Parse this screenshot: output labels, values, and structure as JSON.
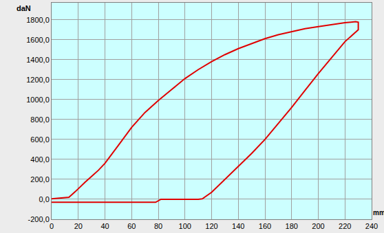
{
  "chart_data": {
    "type": "line",
    "x_label": "mm",
    "y_label": "daN",
    "x": [
      0,
      13,
      18,
      25,
      35,
      40,
      50,
      60,
      70,
      80,
      90,
      100,
      110,
      120,
      130,
      140,
      150,
      160,
      170,
      180,
      190,
      200,
      210,
      220,
      228,
      230,
      230,
      220,
      210,
      200,
      190,
      180,
      170,
      160,
      150,
      140,
      130,
      120,
      113,
      110,
      100,
      82,
      78,
      0
    ],
    "values": [
      5,
      20,
      80,
      170,
      290,
      360,
      540,
      720,
      870,
      990,
      1100,
      1210,
      1300,
      1380,
      1450,
      1510,
      1560,
      1610,
      1650,
      1680,
      1710,
      1730,
      1750,
      1770,
      1780,
      1775,
      1700,
      1580,
      1420,
      1260,
      1090,
      920,
      760,
      600,
      460,
      330,
      200,
      70,
      5,
      0,
      0,
      0,
      -30,
      -30
    ],
    "color": "#e00000",
    "xlim": [
      0,
      240
    ],
    "ylim": [
      -200,
      1970
    ],
    "xticks": [
      0,
      20,
      40,
      60,
      80,
      100,
      120,
      140,
      160,
      180,
      200,
      220,
      240
    ],
    "yticks": [
      {
        "value": -200,
        "label": "-200,0"
      },
      {
        "value": 0,
        "label": "0,0"
      },
      {
        "value": 200,
        "label": "200,0"
      },
      {
        "value": 400,
        "label": "400,0"
      },
      {
        "value": 600,
        "label": "600,0"
      },
      {
        "value": 800,
        "label": "800,0"
      },
      {
        "value": 1000,
        "label": "1000,0"
      },
      {
        "value": 1200,
        "label": "1200,0"
      },
      {
        "value": 1400,
        "label": "1400,0"
      },
      {
        "value": 1600,
        "label": "1600,0"
      },
      {
        "value": 1800,
        "label": "1800,0"
      }
    ],
    "grid": true
  }
}
